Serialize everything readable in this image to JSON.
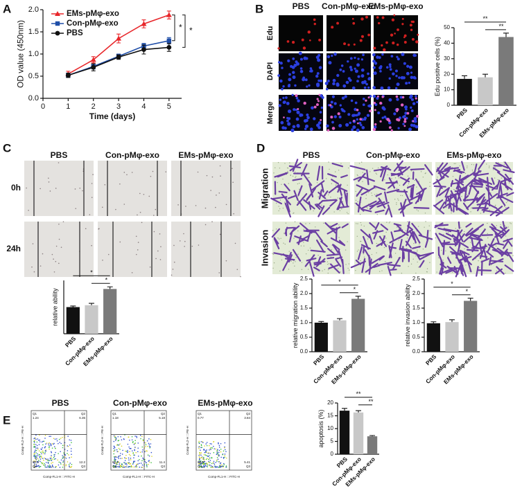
{
  "panel_labels": [
    "A",
    "B",
    "C",
    "D",
    "E"
  ],
  "groups": [
    "PBS",
    "Con-pMφ-exo",
    "EMs-pMφ-exo"
  ],
  "b_rows": [
    "Edu",
    "DAPI",
    "Merge"
  ],
  "c_rows": [
    "0h",
    "24h"
  ],
  "d_rows": [
    "Migration",
    "Invasion"
  ],
  "flow": {
    "x_label": "Comp-FL1-H :: FITC-H",
    "y_label": "Comp-FL2-H :: PE-H",
    "plots": [
      [
        {
          "label": "Q1",
          "value": 1.24
        },
        {
          "label": "Q2",
          "value": 6.35
        },
        {
          "label": "Q4",
          "value": 80.3
        },
        {
          "label": "Q3",
          "value": 12.2
        }
      ],
      [
        {
          "label": "Q1",
          "value": 1.18
        },
        {
          "label": "Q2",
          "value": 5.18
        },
        {
          "label": "Q4",
          "value": 82.3
        },
        {
          "label": "Q3",
          "value": 11.4
        }
      ],
      [
        {
          "label": "Q1",
          "value": 0.77
        },
        {
          "label": "Q2",
          "value": 3.84
        },
        {
          "label": "Q4",
          "value": 89.9
        },
        {
          "label": "Q3",
          "value": 5.41
        }
      ]
    ]
  },
  "chart_data": [
    {
      "type": "line",
      "x_label": "Time (days)",
      "y_label": "OD value (450nm)",
      "x": [
        1,
        2,
        3,
        4,
        5
      ],
      "xlim": [
        0,
        5.5
      ],
      "xticks": [
        0,
        1,
        2,
        3,
        4,
        5
      ],
      "ylim": [
        0,
        2.0
      ],
      "yticks": [
        {
          "value": 0,
          "label": "0.0"
        },
        0.5,
        {
          "value": 1,
          "label": "1.0"
        },
        1.5,
        {
          "value": 2,
          "label": "2.0"
        }
      ],
      "series": [
        {
          "name": "EMs-pMφ-exo",
          "color": "#e8262a",
          "marker": "triangle",
          "values": [
            0.55,
            0.87,
            1.35,
            1.68,
            1.88
          ],
          "errors": [
            0.06,
            0.07,
            0.1,
            0.09,
            0.09
          ]
        },
        {
          "name": "Con-pMφ-exo",
          "color": "#1f4ea8",
          "marker": "square",
          "values": [
            0.52,
            0.72,
            0.95,
            1.18,
            1.3
          ],
          "errors": [
            0.05,
            0.06,
            0.05,
            0.06,
            0.07
          ]
        },
        {
          "name": "PBS",
          "color": "#111111",
          "marker": "circle",
          "values": [
            0.52,
            0.7,
            0.93,
            1.1,
            1.15
          ],
          "errors": [
            0.05,
            0.08,
            0.05,
            0.1,
            0.09
          ]
        }
      ],
      "annotations": [
        "*",
        "*"
      ]
    },
    {
      "type": "bar",
      "y_label": "Edu positive cells (%)",
      "categories": [
        "PBS",
        "Con-pMφ-exo",
        "EMs-pMφ-exo"
      ],
      "values": [
        17,
        18,
        44
      ],
      "errors": [
        2,
        2,
        2.5
      ],
      "colors": [
        "#111111",
        "#c8c8c8",
        "#7a7a7a"
      ],
      "ylim": [
        0,
        50
      ],
      "yticks": [
        0,
        10,
        20,
        30,
        40,
        50
      ],
      "annotations": [
        "**",
        "**"
      ]
    },
    {
      "type": "bar",
      "y_label": "relative ability",
      "categories": [
        "PBS",
        "Con-pMφ-exo",
        "EMs-pMφ-exo"
      ],
      "values": [
        1.0,
        1.07,
        1.68
      ],
      "errors": [
        0.04,
        0.07,
        0.08
      ],
      "colors": [
        "#111111",
        "#c8c8c8",
        "#7a7a7a"
      ],
      "ylim": [
        0,
        2.0
      ],
      "annotations": [
        "*",
        "*"
      ]
    },
    {
      "type": "bar",
      "y_label": "relative migration ability",
      "categories": [
        "PBS",
        "Con-pMφ-exo",
        "EMs-pMφ-exo"
      ],
      "values": [
        1.0,
        1.08,
        1.82
      ],
      "errors": [
        0.04,
        0.06,
        0.09
      ],
      "colors": [
        "#111111",
        "#c8c8c8",
        "#7a7a7a"
      ],
      "ylim": [
        0,
        2.5
      ],
      "yticks": [
        {
          "value": 0,
          "label": "0.0"
        },
        0.5,
        {
          "value": 1,
          "label": "1.0"
        },
        1.5,
        {
          "value": 2,
          "label": "2.0"
        },
        2.5
      ],
      "annotations": [
        "*",
        "*"
      ]
    },
    {
      "type": "bar",
      "y_label": "relative invasion ability",
      "categories": [
        "PBS",
        "Con-pMφ-exo",
        "EMs-pMφ-exo"
      ],
      "values": [
        0.98,
        1.02,
        1.75
      ],
      "errors": [
        0.05,
        0.08,
        0.09
      ],
      "colors": [
        "#111111",
        "#c8c8c8",
        "#7a7a7a"
      ],
      "ylim": [
        0,
        2.5
      ],
      "yticks": [
        {
          "value": 0,
          "label": "0.0"
        },
        0.5,
        {
          "value": 1,
          "label": "1.0"
        },
        1.5,
        {
          "value": 2,
          "label": "2.0"
        },
        2.5
      ],
      "annotations": [
        "*",
        "*"
      ]
    },
    {
      "type": "bar",
      "y_label": "apoptosis (%)",
      "categories": [
        "PBS",
        "Con-pMφ-exo",
        "EMs-pMφ-exo"
      ],
      "values": [
        17,
        16.3,
        7
      ],
      "errors": [
        0.9,
        0.7,
        0.3
      ],
      "colors": [
        "#111111",
        "#c8c8c8",
        "#7a7a7a"
      ],
      "ylim": [
        0,
        20
      ],
      "yticks": [
        0,
        5,
        10,
        15,
        20
      ],
      "annotations": [
        "**",
        "**"
      ]
    }
  ]
}
